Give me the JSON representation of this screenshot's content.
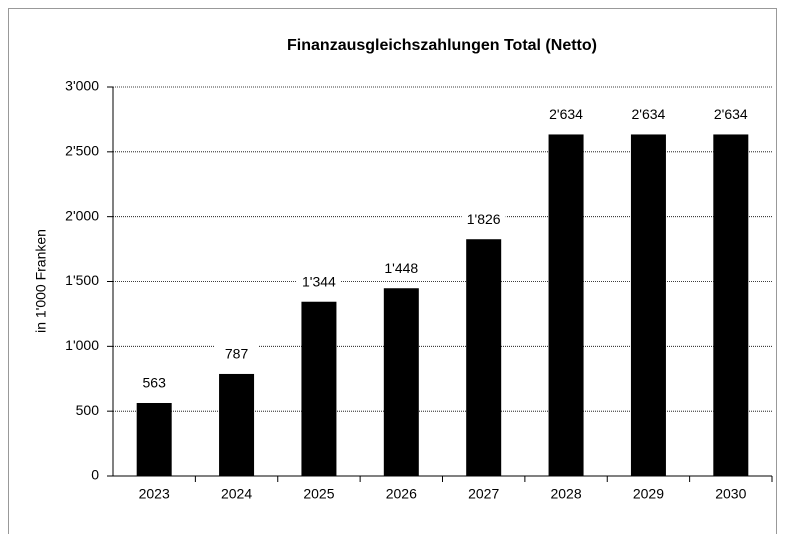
{
  "chart_data": {
    "type": "bar",
    "title": "Finanzausgleichszahlungen Total (Netto)",
    "y_label": "in 1'000 Franken",
    "categories": [
      "2023",
      "2024",
      "2025",
      "2026",
      "2027",
      "2028",
      "2029",
      "2030"
    ],
    "values": [
      563,
      787,
      1344,
      1448,
      1826,
      2634,
      2634,
      2634
    ],
    "value_labels": [
      "563",
      "787",
      "1'344",
      "1'448",
      "1'826",
      "2'634",
      "2'634",
      "2'634"
    ],
    "color": "#000000",
    "ylim": [
      0,
      3000
    ],
    "yticks": [
      0,
      500,
      {
        "value": 1000,
        "label": "1'000"
      },
      {
        "value": 1500,
        "label": "1'500"
      },
      {
        "value": 2000,
        "label": "2'000"
      },
      {
        "value": 2500,
        "label": "2'500"
      },
      {
        "value": 3000,
        "label": "3'000"
      }
    ],
    "grid": true
  }
}
